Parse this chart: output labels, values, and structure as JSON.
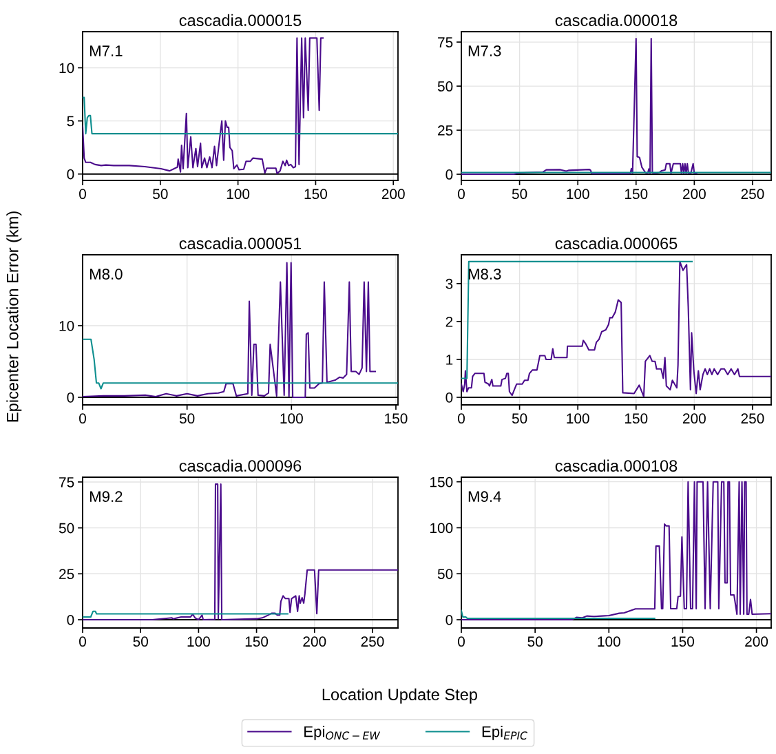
{
  "chart_data": [
    {
      "type": "line",
      "title": "cascadia.000015",
      "annotations": [
        "M7.1"
      ],
      "xlim": [
        0,
        203
      ],
      "ylim": [
        -0.6,
        13.4
      ],
      "xticks": [
        0,
        50,
        100,
        150,
        200
      ],
      "yticks": [
        0,
        5,
        10
      ],
      "grid": true,
      "ref_lines": [
        {
          "axis": "y",
          "value": 0,
          "color": "#000000"
        }
      ],
      "series": [
        {
          "color": "#4b0c8c",
          "x": [
            0,
            1,
            2,
            5,
            8,
            10,
            12,
            15,
            20,
            30,
            40,
            50.4,
            56,
            61,
            61.5,
            63,
            63.7,
            64.7,
            66.8,
            67.7,
            69.6,
            71,
            72.9,
            74,
            75.9,
            76.7,
            78.5,
            80,
            81.8,
            83.3,
            84.9,
            86.2,
            87.7,
            89.6,
            90.8,
            91.9,
            93,
            94,
            94.8,
            96.3,
            97.3,
            99.3,
            100.7,
            103.7,
            105.2,
            108,
            109.6,
            115.6,
            117.3,
            118.5,
            124.4,
            125.2,
            127.1,
            128.9,
            130.4,
            131.3,
            132.6,
            134,
            135.6,
            137,
            138,
            139.3,
            141,
            142.2,
            143.3,
            145.2,
            146.2,
            150.8,
            152.3,
            153.3,
            154.7
          ],
          "values": [
            4.5,
            1.5,
            1.1,
            1.1,
            0.9,
            0.85,
            0.8,
            0.85,
            0.8,
            0.8,
            0.7,
            0.5,
            0.3,
            0.65,
            1.4,
            0.2,
            2.7,
            0.5,
            5.7,
            0.6,
            3.5,
            0.6,
            2.4,
            0.7,
            2.9,
            0.6,
            1.5,
            0.6,
            1.6,
            0.6,
            2.6,
            0.8,
            2.7,
            5.0,
            1.3,
            5.0,
            4.4,
            4.4,
            2.5,
            2.2,
            0.5,
            0.85,
            0.4,
            0.45,
            1.2,
            1.2,
            1.5,
            1.4,
            0.1,
            0.55,
            0.55,
            0.05,
            0.3,
            1.2,
            0.8,
            1.3,
            0.8,
            0.9,
            0.6,
            0.7,
            12.8,
            0.9,
            12.8,
            5.3,
            12.8,
            6.0,
            12.8,
            12.8,
            6.0,
            12.8,
            12.8
          ]
        },
        {
          "color": "#0e8f8f",
          "x": [
            0,
            1,
            2,
            3,
            4,
            5,
            6,
            203
          ],
          "values": [
            7.2,
            7.2,
            3.8,
            5.3,
            5.5,
            5.5,
            3.8,
            3.8
          ]
        }
      ]
    },
    {
      "type": "line",
      "title": "cascadia.000018",
      "annotations": [
        "M7.3"
      ],
      "xlim": [
        0,
        266
      ],
      "ylim": [
        -3.5,
        80.9
      ],
      "xticks": [
        0,
        50,
        100,
        150,
        200,
        250
      ],
      "yticks": [
        0,
        25,
        50,
        75
      ],
      "grid": true,
      "ref_lines": [
        {
          "axis": "y",
          "value": 0,
          "color": "#000000"
        }
      ],
      "series": [
        {
          "color": "#4b0c8c",
          "x": [
            0,
            45,
            50,
            70,
            73,
            85,
            90,
            92,
            110,
            111,
            112,
            145,
            146,
            147,
            150,
            151,
            153,
            155,
            158,
            160,
            161,
            162,
            163,
            164,
            165,
            170,
            172,
            175,
            176,
            179,
            180,
            182,
            188,
            189,
            190,
            191,
            192,
            193,
            194,
            195,
            197,
            199,
            200,
            202
          ],
          "values": [
            0,
            0,
            0.8,
            1.2,
            2.5,
            2.6,
            1.8,
            2.2,
            2.7,
            2.2,
            0.3,
            0.3,
            3.2,
            0.5,
            77,
            10,
            9.5,
            4,
            1,
            0.5,
            3,
            0.5,
            77,
            1,
            0.5,
            1,
            2,
            2.5,
            6,
            6,
            0.5,
            6,
            6,
            0.5,
            6,
            0.5,
            6,
            0.5,
            6,
            0.5,
            0.5,
            6,
            0.5,
            0.5
          ]
        },
        {
          "color": "#0e8f8f",
          "x": [
            0,
            266
          ],
          "values": [
            1.0,
            1.0
          ]
        }
      ]
    },
    {
      "type": "line",
      "title": "cascadia.000051",
      "ylabel": "Epicenter Location Error (km)",
      "annotations": [
        "M8.0"
      ],
      "xlim": [
        0,
        151
      ],
      "ylim": [
        -1.06,
        19.9
      ],
      "xticks": [
        0,
        50,
        100,
        150
      ],
      "yticks": [
        0,
        10
      ],
      "grid": true,
      "ref_lines": [
        {
          "axis": "y",
          "value": 0,
          "color": "#000000"
        }
      ],
      "series": [
        {
          "color": "#4b0c8c",
          "x": [
            0,
            10,
            20,
            30,
            35,
            40,
            45,
            50,
            55,
            60,
            65,
            67.6,
            68.7,
            72,
            73.6,
            79.1,
            79.8,
            81,
            82,
            83,
            84,
            87,
            89,
            89.8,
            92.9,
            94.7,
            96.5,
            97.8,
            98.8,
            99.8,
            100.6,
            106.6,
            107.1,
            108,
            108.8,
            111,
            113.2,
            114.8,
            115.7,
            117,
            120.9,
            123,
            124.7,
            126.4,
            127.7,
            128.6,
            130.8,
            132.4,
            133.8,
            134.8,
            135.9,
            136.8,
            137.6,
            140.1
          ],
          "values": [
            0.1,
            0.2,
            0.2,
            0.3,
            0.1,
            0.5,
            0.2,
            0.5,
            0.2,
            0.5,
            0.6,
            0.8,
            1.9,
            1.9,
            0.2,
            0.5,
            13.4,
            0.3,
            7.4,
            7.4,
            0.3,
            0.2,
            0.6,
            7.4,
            0.2,
            16.1,
            0.3,
            18.8,
            0.1,
            18.8,
            0,
            0,
            8.8,
            9.0,
            1.3,
            1.3,
            1.9,
            2.0,
            16.1,
            2.1,
            2.4,
            2.8,
            2.7,
            3.2,
            16.1,
            3.6,
            3.6,
            3.2,
            4.1,
            16.1,
            3.6,
            16.1,
            3.6,
            3.6
          ]
        },
        {
          "color": "#0e8f8f",
          "x": [
            0,
            4,
            5.5,
            6.6,
            7.7,
            8.8,
            9.9,
            151
          ],
          "values": [
            8.1,
            8.1,
            5.3,
            2.0,
            2.0,
            1.2,
            2.0,
            2.0
          ]
        }
      ]
    },
    {
      "type": "line",
      "title": "cascadia.000065",
      "annotations": [
        "M8.3"
      ],
      "xlim": [
        0,
        266
      ],
      "ylim": [
        -0.2,
        3.76
      ],
      "xticks": [
        0,
        50,
        100,
        150,
        200,
        250
      ],
      "yticks": [
        0,
        1,
        2,
        3
      ],
      "grid": true,
      "ref_lines": [
        {
          "axis": "y",
          "value": 0,
          "color": "#000000"
        }
      ],
      "series": [
        {
          "color": "#4b0c8c",
          "x": [
            0,
            1.6,
            2.9,
            3.5,
            4.8,
            6.2,
            8.7,
            9.7,
            11.6,
            19.4,
            20.3,
            23.3,
            24.2,
            26.2,
            27.1,
            33.9,
            34.9,
            37.8,
            39.1,
            40.3,
            41.3,
            43.6,
            45.5,
            47.5,
            52.3,
            54.3,
            57.2,
            58.5,
            61,
            64.9,
            67.4,
            71.7,
            72.7,
            77.1,
            78.5,
            79.8,
            90.7,
            91.1,
            103.7,
            104.7,
            107,
            109.5,
            114.3,
            115.9,
            118.2,
            120.5,
            124,
            126.4,
            127.5,
            129.5,
            132.2,
            134.7,
            137.2,
            138.6,
            148.3,
            152.7,
            156.6,
            158,
            159.3,
            161.8,
            163.8,
            166.3,
            167.6,
            171.5,
            173.4,
            174.8,
            176,
            179.3,
            181.2,
            183.1,
            185,
            186,
            187.6,
            190.3,
            193.4,
            194.8,
            196.7,
            197.7,
            199.6,
            201.6,
            203.5,
            205,
            207.4,
            209.3,
            211.2,
            213.2,
            215.1,
            217.1,
            220,
            222.9,
            225.8,
            228.7,
            231.6,
            234.5,
            237.4,
            238.8,
            265.5
          ],
          "values": [
            0.35,
            0.15,
            0.35,
            0.7,
            0.15,
            0.25,
            0.25,
            0.55,
            0.63,
            0.63,
            0.4,
            0.35,
            0.3,
            0.47,
            0.3,
            0.3,
            0.47,
            0.5,
            0.63,
            0.63,
            0.15,
            0.05,
            0.2,
            0.35,
            0.35,
            0.45,
            0.45,
            0.63,
            0.72,
            0.72,
            1.1,
            1.1,
            1.0,
            1.0,
            1.28,
            1.05,
            1.05,
            1.35,
            1.35,
            1.5,
            1.4,
            1.25,
            1.25,
            1.45,
            1.53,
            1.73,
            1.78,
            1.92,
            2.1,
            2.1,
            2.25,
            2.57,
            2.5,
            0.12,
            0.1,
            0.32,
            0.02,
            0.95,
            1.0,
            1.1,
            0.95,
            0.95,
            0.75,
            0.75,
            0.5,
            1.05,
            0.3,
            0.2,
            0.45,
            0.35,
            0.25,
            0.85,
            3.58,
            3.35,
            3.5,
            2.4,
            0.2,
            1.7,
            0.7,
            0.1,
            0.7,
            0.2,
            0.6,
            0.75,
            0.6,
            0.75,
            0.6,
            0.75,
            0.6,
            0.75,
            0.75,
            0.6,
            0.75,
            0.6,
            0.75,
            0.55,
            0.55
          ]
        },
        {
          "color": "#0e8f8f",
          "x": [
            0,
            4.8,
            6.4,
            198
          ],
          "values": [
            0.5,
            0.5,
            3.58,
            3.58
          ]
        }
      ]
    },
    {
      "type": "line",
      "title": "cascadia.000096",
      "xlabel": "Location Update Step",
      "annotations": [
        "M9.2"
      ],
      "xlim": [
        0,
        272
      ],
      "ylim": [
        -4.5,
        77.6
      ],
      "xticks": [
        0,
        50,
        100,
        150,
        200,
        250
      ],
      "yticks": [
        0,
        25,
        50,
        75
      ],
      "grid": true,
      "legend": "bottom",
      "ref_lines": [
        {
          "axis": "y",
          "value": 0,
          "color": "#000000"
        }
      ],
      "series": [
        {
          "name": "Epi$_{ONC−EW}$",
          "color": "#4b0c8c",
          "x": [
            0,
            60,
            77,
            78,
            85,
            93,
            95,
            97,
            100,
            103,
            104,
            114,
            114.6,
            116.5,
            117,
            119.2,
            120,
            150,
            155,
            160,
            163,
            166,
            168,
            170,
            171,
            172.9,
            174.9,
            177.9,
            178.9,
            180.2,
            183.8,
            185.4,
            186.8,
            187.7,
            189.3,
            190.7,
            191.7,
            193.7,
            200,
            202,
            203.6,
            271.7
          ],
          "values": [
            0,
            0,
            1,
            0.5,
            1.5,
            1.5,
            3,
            1,
            0,
            2.5,
            0,
            0.2,
            73.8,
            73.8,
            0.5,
            73.8,
            0,
            0.5,
            1,
            2.5,
            3.5,
            3.5,
            2.5,
            2.5,
            10,
            13,
            11.5,
            11.5,
            4,
            11.5,
            13,
            4.5,
            13,
            9,
            12,
            9,
            14,
            27.1,
            27.1,
            3.3,
            27.1,
            27.1
          ]
        },
        {
          "name": "Epi$_{EPIC}$",
          "color": "#0e8f8f",
          "x": [
            0,
            7,
            9,
            11,
            12,
            176.9
          ],
          "values": [
            1.5,
            1.5,
            4.6,
            4.6,
            3.2,
            3.2
          ]
        }
      ]
    },
    {
      "type": "line",
      "title": "cascadia.000108",
      "annotations": [
        "M9.4"
      ],
      "xlim": [
        0,
        210
      ],
      "ylim": [
        -9,
        155
      ],
      "xticks": [
        0,
        50,
        100,
        150,
        200
      ],
      "yticks": [
        0,
        50,
        100,
        150
      ],
      "grid": true,
      "ref_lines": [
        {
          "axis": "y",
          "value": 0,
          "color": "#000000"
        }
      ],
      "series": [
        {
          "color": "#4b0c8c",
          "x": [
            0,
            75,
            78,
            82,
            85,
            90,
            95,
            100,
            107,
            110.4,
            118,
            131.1,
            131.9,
            134.2,
            135.7,
            136.5,
            137.7,
            138.8,
            140.8,
            141.9,
            146,
            146.9,
            148.5,
            149.5,
            151.1,
            152.6,
            153.7,
            155.4,
            156.7,
            158,
            159.2,
            159.8,
            163.8,
            165.2,
            166.9,
            168.7,
            170.7,
            173.8,
            174.5,
            176.4,
            177.9,
            178.7,
            180.2,
            180.7,
            181.7,
            182.5,
            184.8,
            186.8,
            188.3,
            189,
            190.2,
            191.4,
            192,
            193,
            193.6,
            194.8,
            196,
            197.1,
            210
          ],
          "values": [
            0,
            0,
            2.5,
            2,
            4,
            3.5,
            4,
            4.5,
            7,
            7.5,
            11.8,
            11.8,
            80,
            80,
            12,
            12,
            104,
            102,
            102,
            12,
            12,
            25,
            25.6,
            90,
            12,
            12,
            150,
            12,
            12,
            150,
            12,
            150,
            150,
            12,
            150,
            12,
            150,
            150,
            12,
            150,
            150,
            40,
            40,
            150,
            150,
            27,
            27,
            6,
            150,
            6,
            150,
            6,
            150,
            150,
            6,
            6,
            22,
            6,
            6.5
          ]
        },
        {
          "color": "#0e8f8f",
          "x": [
            0,
            1,
            3,
            4,
            131
          ],
          "values": [
            10,
            3,
            3,
            1.5,
            1.5
          ]
        }
      ]
    }
  ]
}
